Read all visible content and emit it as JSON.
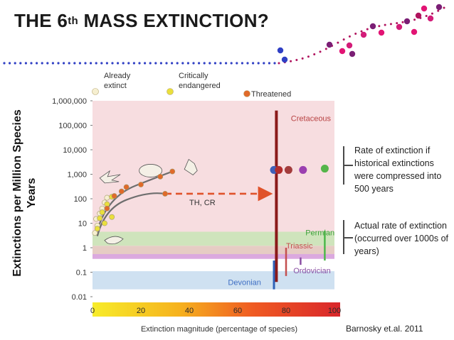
{
  "slide": {
    "title_main": "THE 6",
    "title_sup": "th",
    "title_rest": " MASS EXTINCTION?",
    "ylabel_line1": "Extinctions per Million Species",
    "ylabel_line2": "Years",
    "note1": "Rate of extinction if historical extinctions were compressed into 500 years",
    "note2": "Actual rate of extinction (occurred over 1000s of years)",
    "credit": "Barnosky et.al. 2011",
    "decor_dot_colors": [
      "#2f3fc4",
      "#b0135e",
      "#d31d79",
      "#7b1f75",
      "#e21474"
    ]
  },
  "chart_data": {
    "type": "scatter",
    "y_scale": "log",
    "ylim": [
      0.01,
      1000000
    ],
    "xlim": [
      0,
      100
    ],
    "y_tick_labels": [
      "1,000,000",
      "100,000",
      "10,000",
      "1,000",
      "100",
      "10",
      "1",
      "0.1",
      "0.01"
    ],
    "x_tick_labels": [
      "0",
      "20",
      "40",
      "60",
      "80",
      "100"
    ],
    "xlabel": "Extinction magnitude (percentage of species)",
    "legend": [
      {
        "label_line1": "Already",
        "label_line2": "extinct",
        "color": "#f6efd0"
      },
      {
        "label_line1": "Critically",
        "label_line2": "endangered",
        "color": "#eadf3c"
      },
      {
        "label_line1": "",
        "label_line2": "Threatened",
        "color": "#e06a2a"
      }
    ],
    "annotation": "TH, CR",
    "events": [
      {
        "name": "Cretaceous",
        "x": 76,
        "bar_range": [
          0.04,
          400000
        ],
        "color": "#8b1a1a",
        "label_color": "#b84242"
      },
      {
        "name": "Permian",
        "x": 96,
        "bar_range": [
          0.3,
          5
        ],
        "color": "#4cb84a",
        "label_color": "#3ea23a"
      },
      {
        "name": "Triassic",
        "x": 80,
        "bar_range": [
          0.07,
          1
        ],
        "color": "#c45050",
        "label_color": "#c45050"
      },
      {
        "name": "Ordovician",
        "x": 86,
        "bar_range": [
          0.2,
          0.4
        ],
        "color": "#8a4fa3",
        "label_color": "#8a4fa3"
      },
      {
        "name": "Devonian",
        "x": 75,
        "bar_range": [
          0.02,
          0.3
        ],
        "color": "#2f62b8",
        "label_color": "#3f6fc4"
      }
    ],
    "compressed_points": [
      {
        "x": 75,
        "y": 1500,
        "color": "#3f5fb8"
      },
      {
        "x": 77,
        "y": 1500,
        "color": "#b22d2d"
      },
      {
        "x": 81,
        "y": 1500,
        "color": "#a33c3c"
      },
      {
        "x": 87,
        "y": 1500,
        "color": "#9b3fb0"
      },
      {
        "x": 96,
        "y": 1700,
        "color": "#55b54a"
      }
    ],
    "bands": [
      {
        "label": "Cretaceous",
        "y_range": [
          2,
          1000000
        ],
        "color": "#f7dde0"
      },
      {
        "label": "Permian",
        "y_range": [
          1.2,
          4.5
        ],
        "color": "#cfe4bc"
      },
      {
        "label": "Triassic",
        "y_range": [
          0.45,
          1.2
        ],
        "color": "#e6ccc4"
      },
      {
        "label": "Ordovician",
        "y_range": [
          0.35,
          0.55
        ],
        "color": "#dba9df"
      },
      {
        "label": "Devonian",
        "y_range": [
          0.02,
          0.11
        ],
        "color": "#cfe1f1"
      }
    ],
    "series": [
      {
        "name": "Already extinct",
        "color": "#f6efd0",
        "points": [
          [
            1,
            4
          ],
          [
            2,
            8
          ],
          [
            1.5,
            15
          ],
          [
            3,
            25
          ],
          [
            4,
            40
          ],
          [
            5,
            70
          ],
          [
            6,
            110
          ]
        ]
      },
      {
        "name": "Critically endangered",
        "color": "#eadf3c",
        "points": [
          [
            2,
            6
          ],
          [
            3,
            16
          ],
          [
            4,
            28
          ],
          [
            6,
            60
          ],
          [
            8,
            120
          ],
          [
            8,
            18
          ],
          [
            5,
            10
          ]
        ]
      },
      {
        "name": "Threatened",
        "color": "#e06a2a",
        "points": [
          [
            6,
            40
          ],
          [
            9,
            130
          ],
          [
            12,
            200
          ],
          [
            14,
            300
          ],
          [
            20,
            380
          ],
          [
            28,
            800
          ],
          [
            33,
            1300
          ],
          [
            30,
            160
          ]
        ]
      }
    ]
  }
}
